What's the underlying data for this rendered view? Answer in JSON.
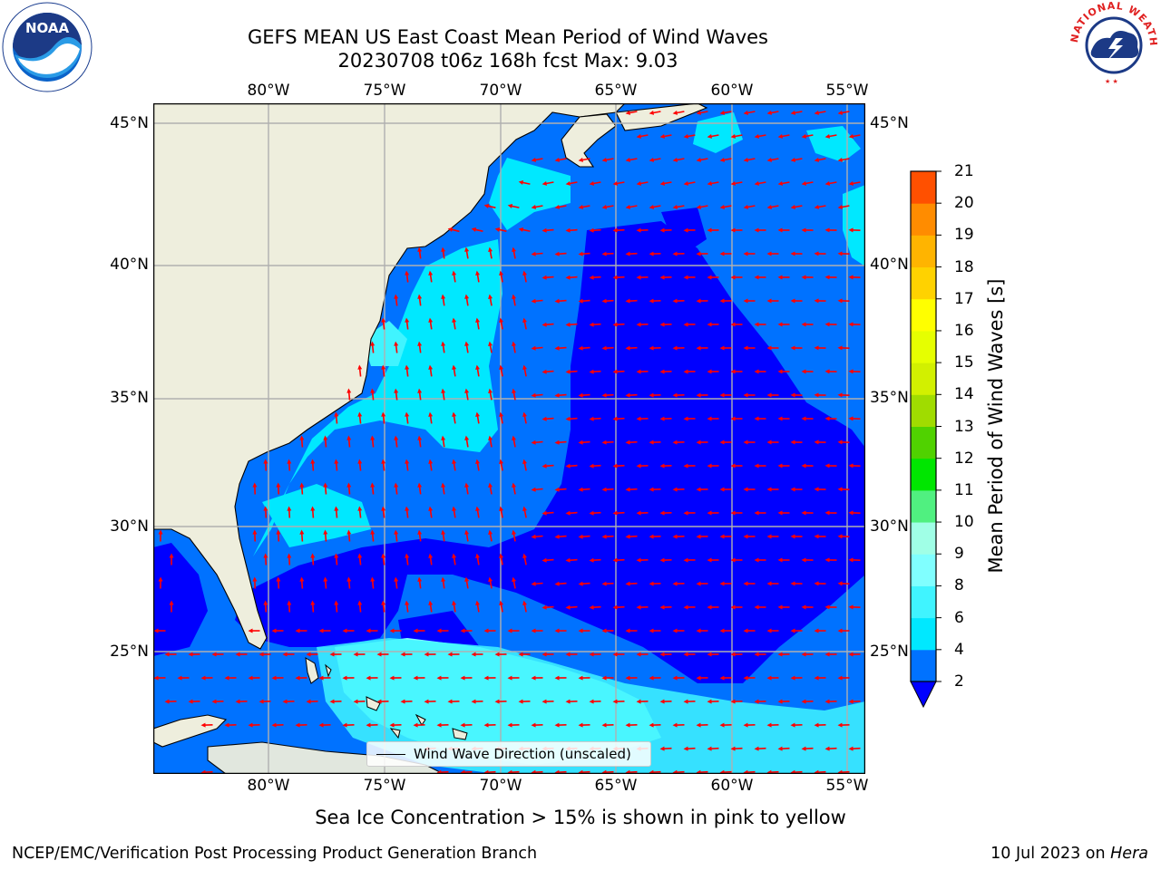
{
  "title": {
    "line1": "GEFS MEAN US East Coast Mean Period of Wind Waves",
    "line2": "20230708 t06z 168h fcst   Max: 9.03"
  },
  "logos": {
    "left": {
      "name": "NOAA",
      "ring_text": "NATIONAL OCEANIC AND ATMOSPHERIC ADMINISTRATION · U.S. DEPARTMENT OF COMMERCE"
    },
    "right": {
      "name": "NATIONAL WEATHER SERVICE"
    }
  },
  "map": {
    "projection": "PlateCarree",
    "extent": {
      "lon_min": -85,
      "lon_max": -54.3,
      "lat_min": 20.5,
      "lat_max": 45.8
    },
    "lon_ticks": [
      "80°W",
      "75°W",
      "70°W",
      "65°W",
      "60°W",
      "55°W"
    ],
    "lat_ticks": [
      "45°N",
      "40°N",
      "35°N",
      "30°N",
      "25°N"
    ],
    "gridlines": true,
    "land_color": "#eeeedd",
    "arrow_color": "#ff0000",
    "legend": {
      "label": "Wind Wave Direction (unscaled)",
      "location": "lower center"
    }
  },
  "colorbar": {
    "title": "Mean Period of Wind Waves [s]",
    "ticks": [
      "2",
      "4",
      "6",
      "8",
      "9",
      "10",
      "11",
      "12",
      "13",
      "14",
      "15",
      "16",
      "17",
      "18",
      "19",
      "20",
      "21"
    ],
    "colors": [
      "#0072ff",
      "#00e8ff",
      "#40f4ff",
      "#80ffff",
      "#a0ffe6",
      "#50f080",
      "#00e600",
      "#50d200",
      "#a0dc00",
      "#d2f000",
      "#e6ff00",
      "#ffff00",
      "#ffd200",
      "#ffb400",
      "#ff8c00",
      "#ff5000",
      "#ff2800",
      "#ff0000"
    ],
    "under_color": "#0000ff",
    "extend": "min"
  },
  "chart_data": {
    "type": "heatmap",
    "title": "GEFS MEAN US East Coast Mean Period of Wind Waves",
    "subtitle": "20230708 t06z 168h fcst   Max: 9.03",
    "max_value": 9.03,
    "units": "s",
    "xlim": [
      -85,
      -54.3
    ],
    "ylim": [
      20.5,
      45.8
    ]
  },
  "notes": {
    "sea_ice": "Sea Ice Concentration > 15% is shown in pink to yellow"
  },
  "footer": {
    "left": "NCEP/EMC/Verification Post Processing Product Generation Branch",
    "right_prefix": "10 Jul 2023 on ",
    "right_machine": "Hera"
  }
}
